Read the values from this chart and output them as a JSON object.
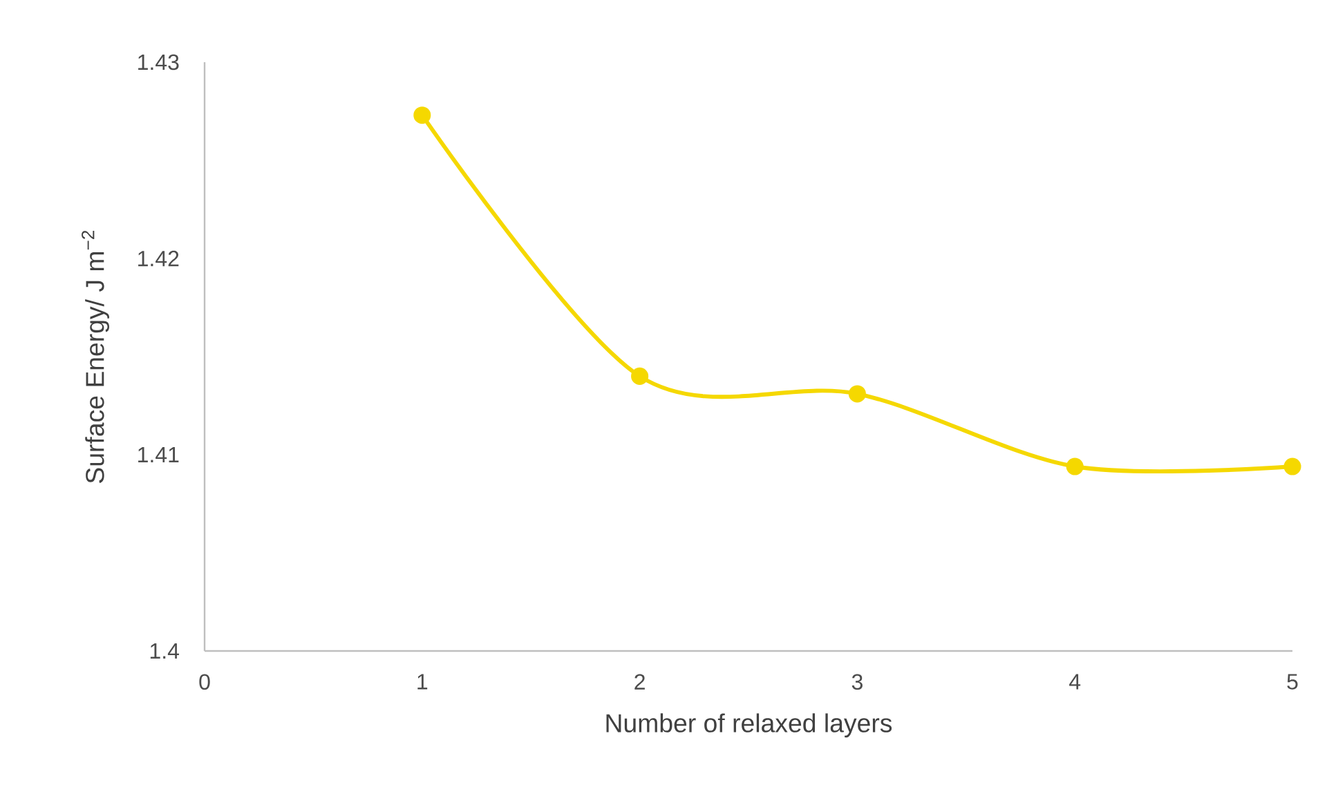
{
  "chart_data": {
    "type": "line",
    "xlabel": "Number of relaxed layers",
    "ylabel": "Surface Energy/ J m$^{−2}$",
    "x": [
      1,
      2,
      3,
      4,
      5
    ],
    "series": [
      {
        "color": "#f5d800",
        "values": [
          1.4273,
          1.414,
          1.4131,
          1.4094,
          1.4094
        ]
      }
    ],
    "xlim": [
      0,
      5
    ],
    "ylim": [
      1.4,
      1.43
    ],
    "xticks": [
      0,
      1,
      2,
      3,
      4,
      5
    ],
    "yticks": [
      1.4,
      1.41,
      1.42,
      1.43
    ],
    "marker": "circle",
    "line_style": "solid",
    "grid": false,
    "legend": false
  }
}
